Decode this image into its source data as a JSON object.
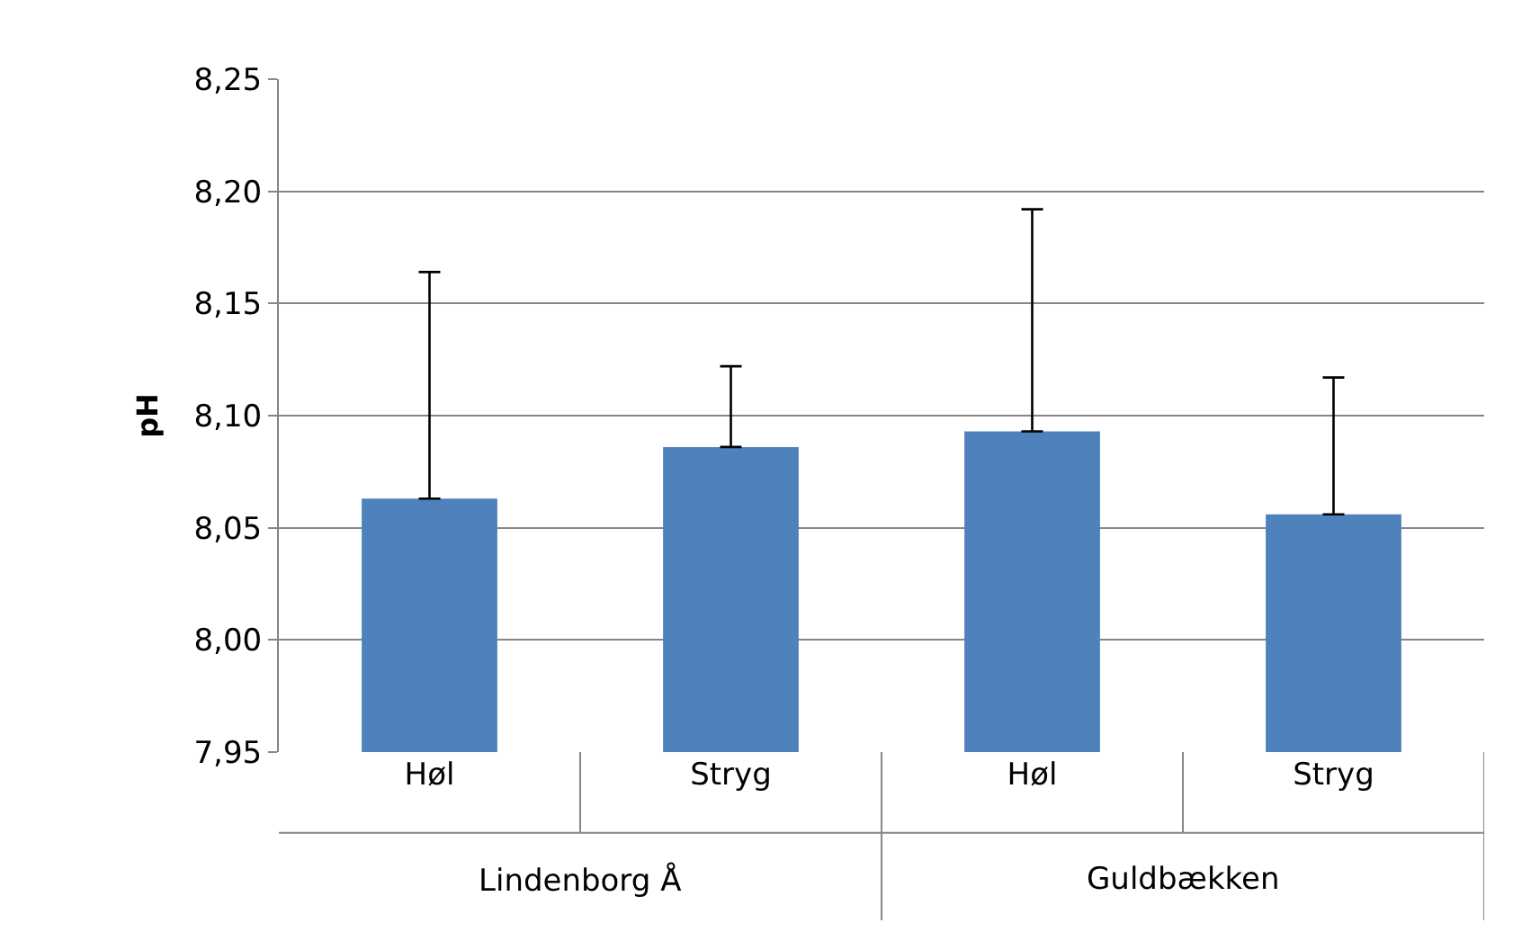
{
  "chart_data": {
    "type": "bar",
    "ylabel": "pH",
    "categories": [
      "Høl",
      "Stryg",
      "Høl",
      "Stryg"
    ],
    "values": [
      8.063,
      8.086,
      8.093,
      8.056
    ],
    "color": "#4f81bd",
    "errors": [
      [
        8.063,
        8.164
      ],
      [
        8.086,
        8.122
      ],
      [
        8.093,
        8.192
      ],
      [
        8.056,
        8.117
      ]
    ],
    "ylim": [
      7.95,
      8.25
    ],
    "yticks": [
      {
        "value": 7.95,
        "label": "7,95"
      },
      {
        "value": 8.0,
        "label": "8,00"
      },
      {
        "value": 8.05,
        "label": "8,05"
      },
      {
        "value": 8.1,
        "label": "8,10"
      },
      {
        "value": 8.15,
        "label": "8,15"
      },
      {
        "value": 8.2,
        "label": "8,20"
      },
      {
        "value": 8.25,
        "label": "8,25"
      }
    ],
    "grid": "y",
    "annotations": [
      "Lindenborg Å",
      "Guldbækken"
    ]
  }
}
